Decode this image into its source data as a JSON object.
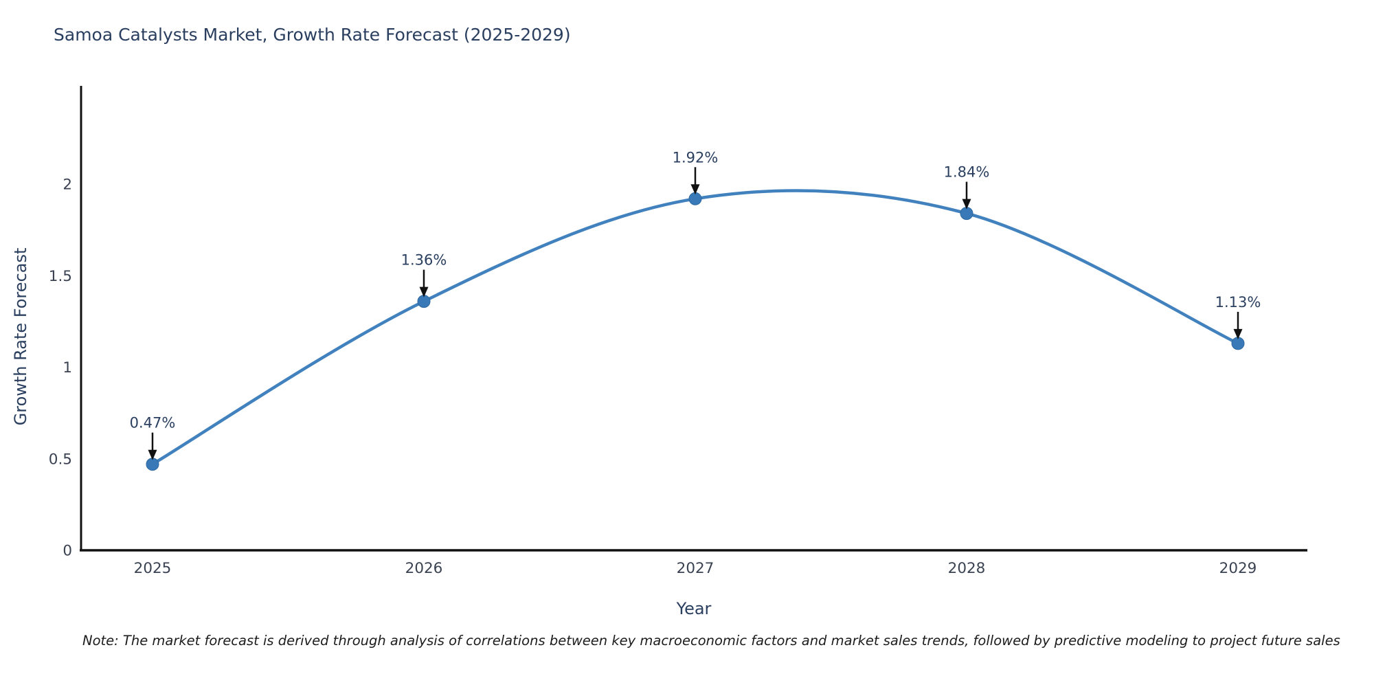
{
  "header": {
    "title": "Samoa Catalysts Market, Growth Rate Forecast (2025-2029)"
  },
  "footnote": "Note: The market forecast is derived through analysis of correlations between key macroeconomic factors and market sales trends, followed by predictive modeling to project future sales",
  "chart_data": {
    "type": "line",
    "title": "Samoa Catalysts Market, Growth Rate Forecast (2025-2029)",
    "xlabel": "Year",
    "ylabel": "Growth Rate Forecast",
    "categories": [
      "2025",
      "2026",
      "2027",
      "2028",
      "2029"
    ],
    "series": [
      {
        "name": "Growth Rate Forecast",
        "values": [
          0.47,
          1.36,
          1.92,
          1.84,
          1.13
        ]
      }
    ],
    "point_labels": [
      "0.47%",
      "1.36%",
      "1.92%",
      "1.84%",
      "1.13%"
    ],
    "annotation_style": "value label with downward arrow above each data point",
    "ylim": [
      0,
      2.53
    ],
    "yticks": [
      0,
      0.5,
      1,
      1.5,
      2
    ],
    "ytick_labels": [
      "0",
      "0.5",
      "1",
      "1.5",
      "2"
    ],
    "line_shape": "spline",
    "grid": false,
    "legend_position": "none",
    "colors": {
      "line": "#4181bd",
      "marker_fill": "#3a79b8",
      "marker_edge": "#2e699f",
      "axis_line": "#111111",
      "tick_text": "#3a4252",
      "axis_title_text": "#2a3f5f",
      "annotation_text": "#2a3f5f",
      "annotation_arrow": "#111111",
      "background": "#ffffff"
    }
  }
}
